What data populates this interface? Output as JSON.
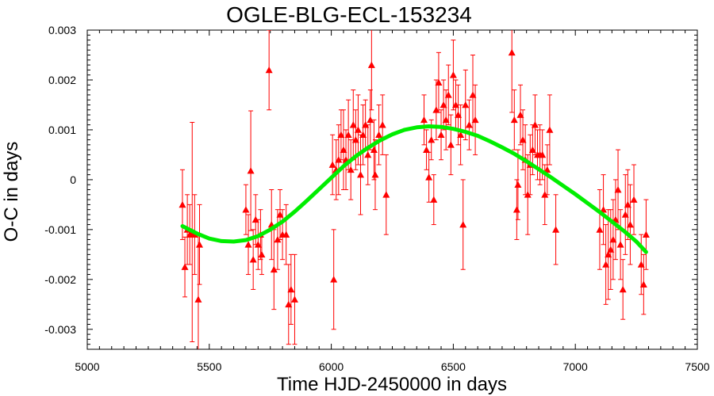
{
  "chart_data": {
    "type": "scatter",
    "title": "OGLE-BLG-ECL-153234",
    "xlabel": "Time HJD-2450000 in days",
    "ylabel": "O-C in days",
    "xlim": [
      5000,
      7500
    ],
    "ylim": [
      -0.0034,
      0.003
    ],
    "xticks": [
      5000,
      5500,
      6000,
      6500,
      7000,
      7500
    ],
    "xtick_labels": [
      "5000",
      "5500",
      "6000",
      "6500",
      "7000",
      "7500"
    ],
    "yticks": [
      -0.003,
      -0.002,
      -0.001,
      0,
      0.001,
      0.002,
      0.003
    ],
    "ytick_labels": [
      "-0.003",
      "-0.002",
      "-0.001",
      "0",
      "0.001",
      "0.002",
      "0.003"
    ],
    "grid": false,
    "legend": "none",
    "marker_color": "#ff0000",
    "fit_color": "#00ee00",
    "series": [
      {
        "type": "scatter-errorbar",
        "marker": "triangle",
        "points": [
          {
            "x": 5390,
            "y": -0.0005,
            "err": 0.0007
          },
          {
            "x": 5400,
            "y": -0.00175,
            "err": 0.0006
          },
          {
            "x": 5410,
            "y": -0.001,
            "err": 0.0007
          },
          {
            "x": 5420,
            "y": -0.0011,
            "err": 0.0006
          },
          {
            "x": 5430,
            "y": -0.00105,
            "err": 0.0022
          },
          {
            "x": 5440,
            "y": -0.0011,
            "err": 0.0008
          },
          {
            "x": 5455,
            "y": -0.0024,
            "err": 0.0013
          },
          {
            "x": 5460,
            "y": -0.0013,
            "err": 0.0008
          },
          {
            "x": 5650,
            "y": -0.0006,
            "err": 0.0005
          },
          {
            "x": 5660,
            "y": -0.0013,
            "err": 0.0006
          },
          {
            "x": 5670,
            "y": 0.00018,
            "err": 0.0012
          },
          {
            "x": 5680,
            "y": -0.0016,
            "err": 0.0006
          },
          {
            "x": 5690,
            "y": -0.0008,
            "err": 0.0005
          },
          {
            "x": 5700,
            "y": -0.0013,
            "err": 0.0005
          },
          {
            "x": 5710,
            "y": -0.0011,
            "err": 0.0005
          },
          {
            "x": 5715,
            "y": -0.0015,
            "err": 0.0004
          },
          {
            "x": 5745,
            "y": 0.0022,
            "err": 0.0008
          },
          {
            "x": 5755,
            "y": -0.0009,
            "err": 0.0007
          },
          {
            "x": 5765,
            "y": -0.0018,
            "err": 0.0008
          },
          {
            "x": 5780,
            "y": -0.0012,
            "err": 0.0006
          },
          {
            "x": 5790,
            "y": -0.0007,
            "err": 0.0005
          },
          {
            "x": 5800,
            "y": -0.0011,
            "err": 0.0005
          },
          {
            "x": 5815,
            "y": -0.0011,
            "err": 0.0006
          },
          {
            "x": 5825,
            "y": -0.0025,
            "err": 0.0008
          },
          {
            "x": 5835,
            "y": -0.0022,
            "err": 0.0007
          },
          {
            "x": 5850,
            "y": -0.0024,
            "err": 0.0009
          },
          {
            "x": 6005,
            "y": 0.0003,
            "err": 0.0006
          },
          {
            "x": 6010,
            "y": -0.002,
            "err": 0.001
          },
          {
            "x": 6020,
            "y": 0.0002,
            "err": 0.0006
          },
          {
            "x": 6030,
            "y": 0.0004,
            "err": 0.0007
          },
          {
            "x": 6040,
            "y": 0.0009,
            "err": 0.0005
          },
          {
            "x": 6050,
            "y": 0.0006,
            "err": 0.0008
          },
          {
            "x": 6060,
            "y": 0.0004,
            "err": 0.0006
          },
          {
            "x": 6070,
            "y": 0.0009,
            "err": 0.0007
          },
          {
            "x": 6080,
            "y": 0.0002,
            "err": 0.0006
          },
          {
            "x": 6090,
            "y": 0.0011,
            "err": 0.0007
          },
          {
            "x": 6100,
            "y": 0.0008,
            "err": 0.0006
          },
          {
            "x": 6110,
            "y": 0.001,
            "err": 0.0007
          },
          {
            "x": 6120,
            "y": 0.0001,
            "err": 0.0008
          },
          {
            "x": 6130,
            "y": 0.0009,
            "err": 0.0006
          },
          {
            "x": 6140,
            "y": 0.0011,
            "err": 0.0005
          },
          {
            "x": 6150,
            "y": 0.0005,
            "err": 0.0006
          },
          {
            "x": 6160,
            "y": 0.0012,
            "err": 0.0006
          },
          {
            "x": 6165,
            "y": 0.0023,
            "err": 0.0009
          },
          {
            "x": 6175,
            "y": 0.0006,
            "err": 0.0006
          },
          {
            "x": 6180,
            "y": 0.0001,
            "err": 0.0007
          },
          {
            "x": 6195,
            "y": 0.0009,
            "err": 0.0006
          },
          {
            "x": 6210,
            "y": 0.0011,
            "err": 0.0006
          },
          {
            "x": 6225,
            "y": -0.0003,
            "err": 0.0008
          },
          {
            "x": 6380,
            "y": 0.0012,
            "err": 0.0005
          },
          {
            "x": 6390,
            "y": 0.0006,
            "err": 0.0004
          },
          {
            "x": 6400,
            "y": 5e-05,
            "err": 0.0005
          },
          {
            "x": 6410,
            "y": 0.0008,
            "err": 0.0004
          },
          {
            "x": 6420,
            "y": -0.0004,
            "err": 0.0005
          },
          {
            "x": 6430,
            "y": 0.0014,
            "err": 0.0006
          },
          {
            "x": 6440,
            "y": 0.00195,
            "err": 0.0006
          },
          {
            "x": 6450,
            "y": 0.0009,
            "err": 0.0005
          },
          {
            "x": 6460,
            "y": 0.0015,
            "err": 0.0005
          },
          {
            "x": 6470,
            "y": 0.0012,
            "err": 0.0006
          },
          {
            "x": 6480,
            "y": 0.0017,
            "err": 0.0006
          },
          {
            "x": 6490,
            "y": 0.0007,
            "err": 0.0006
          },
          {
            "x": 6500,
            "y": 0.0021,
            "err": 0.0007
          },
          {
            "x": 6510,
            "y": 0.0015,
            "err": 0.0005
          },
          {
            "x": 6520,
            "y": 0.0013,
            "err": 0.0006
          },
          {
            "x": 6530,
            "y": 0.0009,
            "err": 0.0006
          },
          {
            "x": 6540,
            "y": -0.0009,
            "err": 0.0009
          },
          {
            "x": 6550,
            "y": 0.0015,
            "err": 0.0007
          },
          {
            "x": 6565,
            "y": 0.0011,
            "err": 0.0005
          },
          {
            "x": 6580,
            "y": 0.0017,
            "err": 0.0008
          },
          {
            "x": 6590,
            "y": 0.0012,
            "err": 0.0007
          },
          {
            "x": 6740,
            "y": 0.00255,
            "err": 0.0012
          },
          {
            "x": 6750,
            "y": 0.0012,
            "err": 0.0006
          },
          {
            "x": 6760,
            "y": -0.0006,
            "err": 0.0006
          },
          {
            "x": 6765,
            "y": -0.0001,
            "err": 0.0007
          },
          {
            "x": 6775,
            "y": 0.0013,
            "err": 0.0006
          },
          {
            "x": 6785,
            "y": 0.0008,
            "err": 0.0006
          },
          {
            "x": 6795,
            "y": 0.0004,
            "err": 0.0007
          },
          {
            "x": 6805,
            "y": -0.0003,
            "err": 0.0008
          },
          {
            "x": 6815,
            "y": 0.0003,
            "err": 0.0006
          },
          {
            "x": 6825,
            "y": 0.0006,
            "err": 0.0005
          },
          {
            "x": 6835,
            "y": 0.0011,
            "err": 0.0006
          },
          {
            "x": 6845,
            "y": 0.0005,
            "err": 0.0005
          },
          {
            "x": 6855,
            "y": 0.0005,
            "err": 0.0006
          },
          {
            "x": 6865,
            "y": 0.0005,
            "err": 0.0005
          },
          {
            "x": 6875,
            "y": -0.0003,
            "err": 0.0006
          },
          {
            "x": 6885,
            "y": 0.0002,
            "err": 0.0005
          },
          {
            "x": 6895,
            "y": 0.001,
            "err": 0.0007
          },
          {
            "x": 6920,
            "y": -0.001,
            "err": 0.0007
          },
          {
            "x": 7100,
            "y": -0.001,
            "err": 0.0008
          },
          {
            "x": 7115,
            "y": -0.0006,
            "err": 0.0007
          },
          {
            "x": 7125,
            "y": -0.0017,
            "err": 0.0008
          },
          {
            "x": 7135,
            "y": -0.0015,
            "err": 0.0009
          },
          {
            "x": 7145,
            "y": -0.0014,
            "err": 0.0008
          },
          {
            "x": 7155,
            "y": -0.0012,
            "err": 0.0008
          },
          {
            "x": 7165,
            "y": -0.0008,
            "err": 0.0008
          },
          {
            "x": 7175,
            "y": -0.0002,
            "err": 0.0008
          },
          {
            "x": 7185,
            "y": -0.0013,
            "err": 0.0007
          },
          {
            "x": 7195,
            "y": -0.0022,
            "err": 0.0006
          },
          {
            "x": 7205,
            "y": -0.0007,
            "err": 0.0008
          },
          {
            "x": 7215,
            "y": -0.0005,
            "err": 0.0007
          },
          {
            "x": 7225,
            "y": -0.0009,
            "err": 0.0008
          },
          {
            "x": 7240,
            "y": -0.0004,
            "err": 0.0007
          },
          {
            "x": 7270,
            "y": -0.0017,
            "err": 0.0006
          },
          {
            "x": 7280,
            "y": -0.0021,
            "err": 0.0006
          },
          {
            "x": 7290,
            "y": -0.0011,
            "err": 0.0007
          }
        ]
      },
      {
        "type": "line",
        "x": [
          5390,
          5450,
          5500,
          5550,
          5600,
          5650,
          5700,
          5750,
          5800,
          5850,
          5900,
          5950,
          6000,
          6050,
          6100,
          6150,
          6200,
          6250,
          6300,
          6350,
          6400,
          6450,
          6500,
          6550,
          6600,
          6650,
          6700,
          6750,
          6800,
          6850,
          6900,
          6950,
          7000,
          7050,
          7100,
          7150,
          7200,
          7250,
          7290
        ],
        "y": [
          -0.00093,
          -0.00108,
          -0.00118,
          -0.00123,
          -0.00124,
          -0.00121,
          -0.00113,
          -0.001,
          -0.00084,
          -0.00064,
          -0.00042,
          -0.00019,
          4e-05,
          0.00027,
          0.00047,
          0.00064,
          0.00079,
          0.00091,
          0.001,
          0.00105,
          0.00107,
          0.00106,
          0.00102,
          0.00096,
          0.00088,
          0.00077,
          0.00065,
          0.00052,
          0.00037,
          0.00021,
          5e-05,
          -0.00012,
          -0.00029,
          -0.00047,
          -0.00065,
          -0.00084,
          -0.00103,
          -0.00124,
          -0.00145
        ]
      }
    ]
  }
}
